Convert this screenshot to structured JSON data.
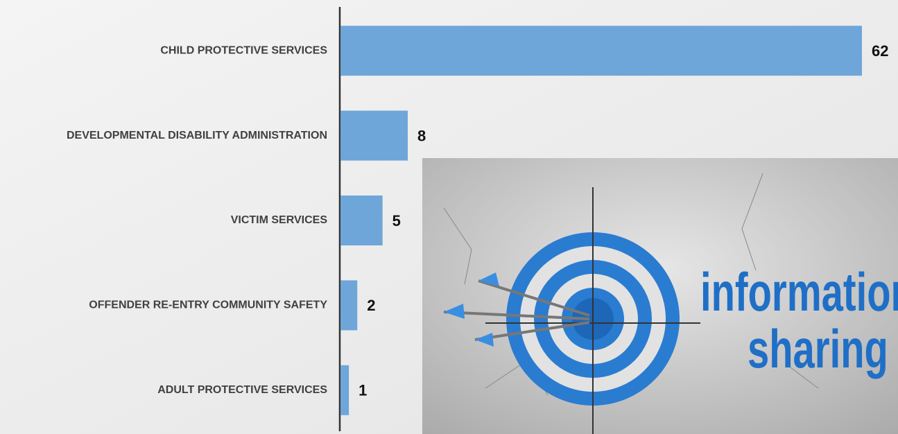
{
  "chart_data": {
    "type": "hbar",
    "categories": [
      "CHILD PROTECTIVE SERVICES",
      "DEVELOPMENTAL DISABILITY ADMINISTRATION",
      "VICTIM SERVICES",
      "OFFENDER RE-ENTRY COMMUNITY SAFETY",
      "ADULT PROTECTIVE SERVICES"
    ],
    "values": [
      62,
      8,
      5,
      2,
      1
    ],
    "color": "#6fa6da"
  },
  "photo": {
    "text_lines": [
      "information",
      "sharing"
    ]
  }
}
